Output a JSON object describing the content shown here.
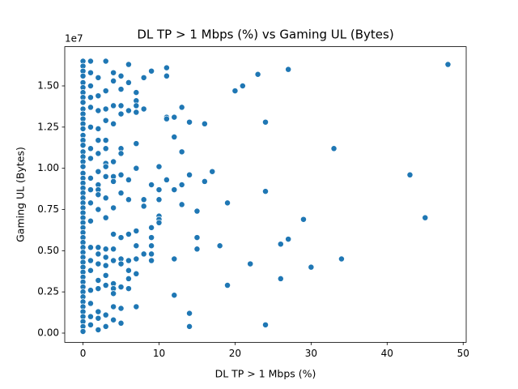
{
  "chart_data": {
    "type": "scatter",
    "title": "DL TP > 1 Mbps (%) vs Gaming UL (Bytes)",
    "x_label": "DL TP > 1 Mbps (%)",
    "y_label": "Gaming UL (Bytes)",
    "y_offset_label": "1e7",
    "color": "#1f77b4",
    "xlim": [
      -2.4,
      50.4
    ],
    "ylim": [
      -560000,
      17380000
    ],
    "xticks": [
      0,
      10,
      20,
      30,
      40,
      50
    ],
    "yticks": [
      {
        "value": 0,
        "label": "0.00"
      },
      {
        "value": 2500000,
        "label": "0.25"
      },
      {
        "value": 5000000,
        "label": "0.50"
      },
      {
        "value": 7500000,
        "label": "0.75"
      },
      {
        "value": 10000000,
        "label": "1.00"
      },
      {
        "value": 12500000,
        "label": "1.25"
      },
      {
        "value": 15000000,
        "label": "1.50"
      }
    ],
    "grid": false,
    "x": [
      48,
      45,
      43,
      34,
      33,
      30,
      29,
      27,
      27,
      26,
      26,
      24,
      24,
      24,
      23,
      22,
      21,
      20,
      19,
      19,
      18,
      17,
      16,
      16,
      15,
      15,
      15,
      14,
      14,
      14,
      14,
      13,
      13,
      13,
      13,
      12,
      12,
      12,
      12,
      12,
      11,
      11,
      11,
      11,
      11,
      10,
      10,
      10,
      10,
      10,
      10,
      9,
      9,
      9,
      9,
      9,
      9,
      9,
      8,
      8,
      8,
      8,
      8,
      7,
      7,
      7,
      7,
      7,
      7,
      7,
      7,
      7,
      7,
      7,
      6,
      6,
      6,
      6,
      6,
      6,
      6,
      6,
      6,
      6,
      5,
      5,
      5,
      5,
      5,
      5,
      5,
      5,
      5,
      5,
      5,
      5,
      5,
      5,
      4,
      4,
      4,
      4,
      4,
      4,
      4,
      4,
      4,
      4,
      4,
      4,
      4,
      4,
      4,
      4,
      3,
      3,
      3,
      3,
      3,
      3,
      3,
      3,
      3,
      3,
      3,
      3,
      3,
      3,
      3,
      3,
      3,
      3,
      2,
      2,
      2,
      2,
      2,
      2,
      2,
      2,
      2,
      2,
      2,
      2,
      2,
      2,
      2,
      2,
      2,
      2,
      2,
      1,
      1,
      1,
      1,
      1,
      1,
      1,
      1,
      1,
      1,
      1,
      1,
      1,
      1,
      1,
      1,
      1,
      1,
      1,
      0,
      0,
      0,
      0,
      0,
      0,
      0,
      0,
      0,
      0,
      0,
      0,
      0,
      0,
      0,
      0,
      0,
      0,
      0,
      0,
      0,
      0,
      0,
      0,
      0,
      0,
      0,
      0,
      0,
      0,
      0,
      0,
      0,
      0,
      0,
      0,
      0,
      0,
      0,
      0,
      0,
      0,
      0,
      0,
      0,
      0,
      0,
      0,
      0,
      0,
      0,
      0,
      0,
      0
    ],
    "values": [
      16300000,
      7000000,
      9600000,
      4500000,
      11200000,
      4000000,
      6900000,
      16000000,
      5700000,
      5400000,
      3300000,
      12800000,
      8600000,
      500000,
      15700000,
      4200000,
      15000000,
      14700000,
      7900000,
      2900000,
      5300000,
      9800000,
      12700000,
      9200000,
      7400000,
      5800000,
      5100000,
      12800000,
      9600000,
      1200000,
      400000,
      13700000,
      11000000,
      9000000,
      7800000,
      13100000,
      11900000,
      8700000,
      4500000,
      2300000,
      16100000,
      15600000,
      13100000,
      13000000,
      9300000,
      10100000,
      8700000,
      8100000,
      7100000,
      6900000,
      6700000,
      15900000,
      9000000,
      6400000,
      5800000,
      5300000,
      4800000,
      4400000,
      15500000,
      13600000,
      8100000,
      7700000,
      4800000,
      14600000,
      14100000,
      13800000,
      13400000,
      11500000,
      10000000,
      6200000,
      5300000,
      4500000,
      3600000,
      1600000,
      16300000,
      15200000,
      13500000,
      9300000,
      8100000,
      6000000,
      4400000,
      3800000,
      3300000,
      2700000,
      15600000,
      14800000,
      13800000,
      13300000,
      11200000,
      10900000,
      9600000,
      8500000,
      5800000,
      4500000,
      4200000,
      2800000,
      1500000,
      600000,
      15800000,
      15300000,
      13800000,
      12700000,
      10400000,
      9500000,
      9200000,
      7600000,
      6000000,
      5100000,
      4400000,
      3000000,
      2700000,
      2400000,
      1600000,
      800000,
      16500000,
      14700000,
      13600000,
      12900000,
      11700000,
      11200000,
      10300000,
      10100000,
      9500000,
      8200000,
      7000000,
      5100000,
      4600000,
      4100000,
      3500000,
      2900000,
      1100000,
      400000,
      15500000,
      14400000,
      13500000,
      12400000,
      11700000,
      10900000,
      9800000,
      9000000,
      8700000,
      8400000,
      7500000,
      5200000,
      4800000,
      4200000,
      3200000,
      2700000,
      1300000,
      900000,
      200000,
      16500000,
      15800000,
      15000000,
      14300000,
      13700000,
      12500000,
      11200000,
      10600000,
      9400000,
      8700000,
      7900000,
      6800000,
      5200000,
      4400000,
      3800000,
      2600000,
      1800000,
      1000000,
      500000,
      16500000,
      16200000,
      15900000,
      15600000,
      15200000,
      14900000,
      14600000,
      14300000,
      14000000,
      13600000,
      13300000,
      13000000,
      12700000,
      12400000,
      12000000,
      11700000,
      11400000,
      11000000,
      10700000,
      10400000,
      10100000,
      9700000,
      9400000,
      9100000,
      8800000,
      8500000,
      8200000,
      7900000,
      7600000,
      7300000,
      7000000,
      6700000,
      6400000,
      6100000,
      5800000,
      5500000,
      5200000,
      4900000,
      4600000,
      4300000,
      4000000,
      3700000,
      3400000,
      3100000,
      2800000,
      2500000,
      2200000,
      1900000,
      1600000,
      1300000,
      1000000,
      700000,
      400000,
      100000
    ]
  }
}
